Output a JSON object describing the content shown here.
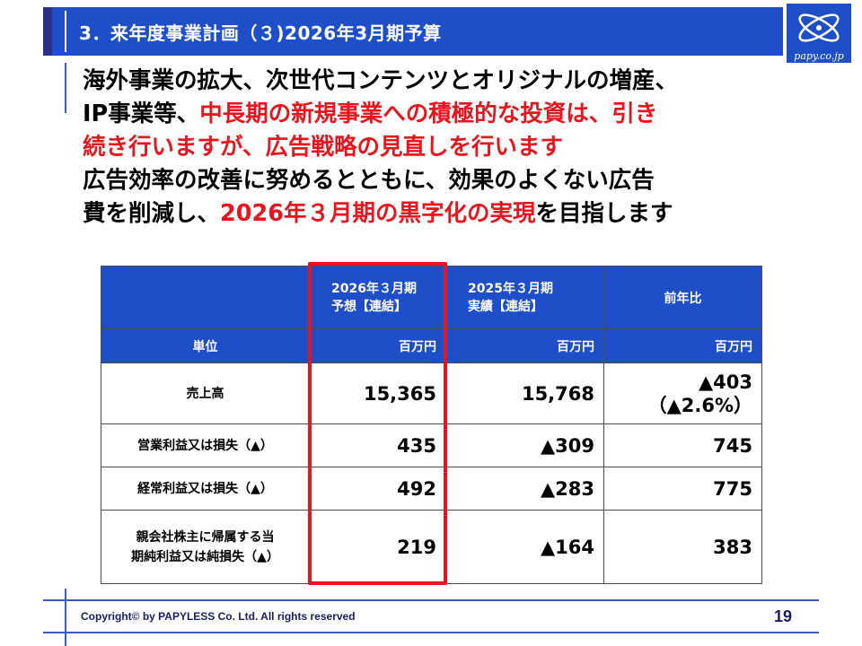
{
  "header": {
    "title": "3．来年度事業計画（３)2026年3月期予算",
    "logo_text": "papy.co.jp"
  },
  "body": {
    "line1": "海外事業の拡大、次世代コンテンツとオリジナルの増産、",
    "line2_black": "IP事業等、",
    "line2_red": "中長期の新規事業への積極的な投資は、引き",
    "line3_red": "続き行いますが、広告戦略の見直しを行います",
    "line4": "広告効率の改善に努めるとともに、効果のよくない広告",
    "line5_black_a": "費を削減し、",
    "line5_red": "2026年３月期の黒字化の実現",
    "line5_black_b": "を目指します"
  },
  "table": {
    "col_headers": [
      "",
      "2026年３月期\n予想【連結】",
      "2025年３月期\n実績【連結】",
      "前年比"
    ],
    "unit_row": {
      "label": "単位",
      "units": [
        "百万円",
        "百万円",
        "百万円"
      ]
    },
    "rows": [
      {
        "label": "売上高",
        "v2026": "15,365",
        "v2025": "15,768",
        "yoy": "▲403\n（▲2.6%）"
      },
      {
        "label": "営業利益又は損失（▲）",
        "v2026": "435",
        "v2025": "▲309",
        "yoy": "745"
      },
      {
        "label": "経常利益又は損失（▲）",
        "v2026": "492",
        "v2025": "▲283",
        "yoy": "775"
      },
      {
        "label": "親会社株主に帰属する当\n期純利益又は純損失（▲）",
        "v2026": "219",
        "v2025": "▲164",
        "yoy": "383"
      }
    ]
  },
  "footer": {
    "copyright": "Copyright© by PAPYLESS Co. Ltd. All rights reserved",
    "page_number": "19"
  },
  "colors": {
    "brand_blue": "#1f4fc8",
    "emphasis_red": "#e8141e"
  }
}
